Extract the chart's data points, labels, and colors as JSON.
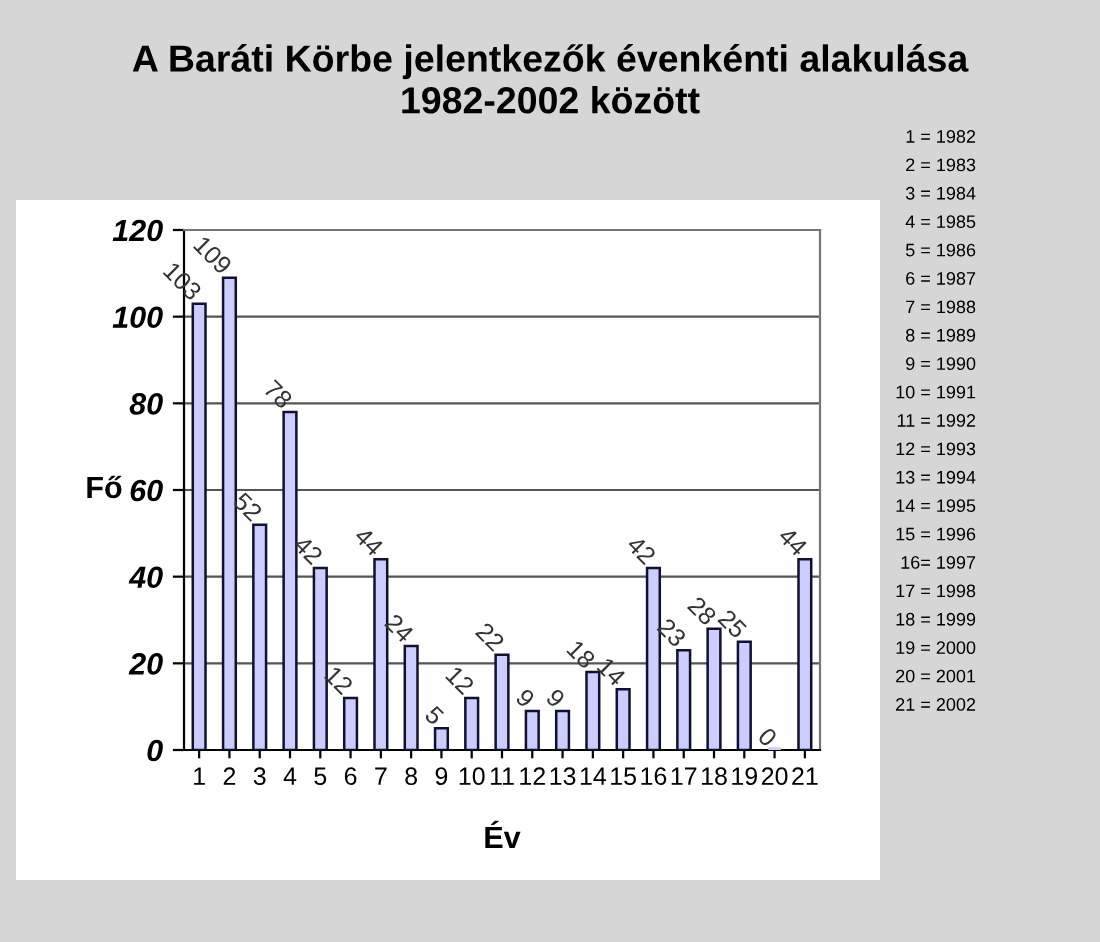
{
  "chart_data": {
    "type": "bar",
    "title": "A Baráti Körbe jelentkezők évenkénti alakulása\n1982-2002 között",
    "xlabel": "Év",
    "ylabel": "Fő",
    "categories": [
      "1",
      "2",
      "3",
      "4",
      "5",
      "6",
      "7",
      "8",
      "9",
      "10",
      "11",
      "12",
      "13",
      "14",
      "15",
      "16",
      "17",
      "18",
      "19",
      "20",
      "21"
    ],
    "values": [
      103,
      109,
      52,
      78,
      42,
      12,
      44,
      24,
      5,
      12,
      22,
      9,
      9,
      18,
      14,
      42,
      23,
      28,
      25,
      0,
      44
    ],
    "color": "#ccccff",
    "data_labels": true,
    "ylim": [
      0,
      120
    ],
    "yticks": [
      0,
      20,
      40,
      60,
      80,
      100,
      120
    ],
    "grid": "y",
    "annotations": [
      "1 = 1982",
      "2 = 1983",
      "3 = 1984",
      "4 = 1985",
      "5 = 1986",
      "6 = 1987",
      "7 = 1988",
      "8 = 1989",
      "9 = 1990",
      "10 = 1991",
      "11 = 1992",
      "12 = 1993",
      "13 = 1994",
      "14 = 1995",
      "15 = 1996",
      "16= 1997",
      "17 = 1998",
      "18 = 1999",
      "19 = 2000",
      "20 = 2001",
      "21 = 2002"
    ]
  }
}
